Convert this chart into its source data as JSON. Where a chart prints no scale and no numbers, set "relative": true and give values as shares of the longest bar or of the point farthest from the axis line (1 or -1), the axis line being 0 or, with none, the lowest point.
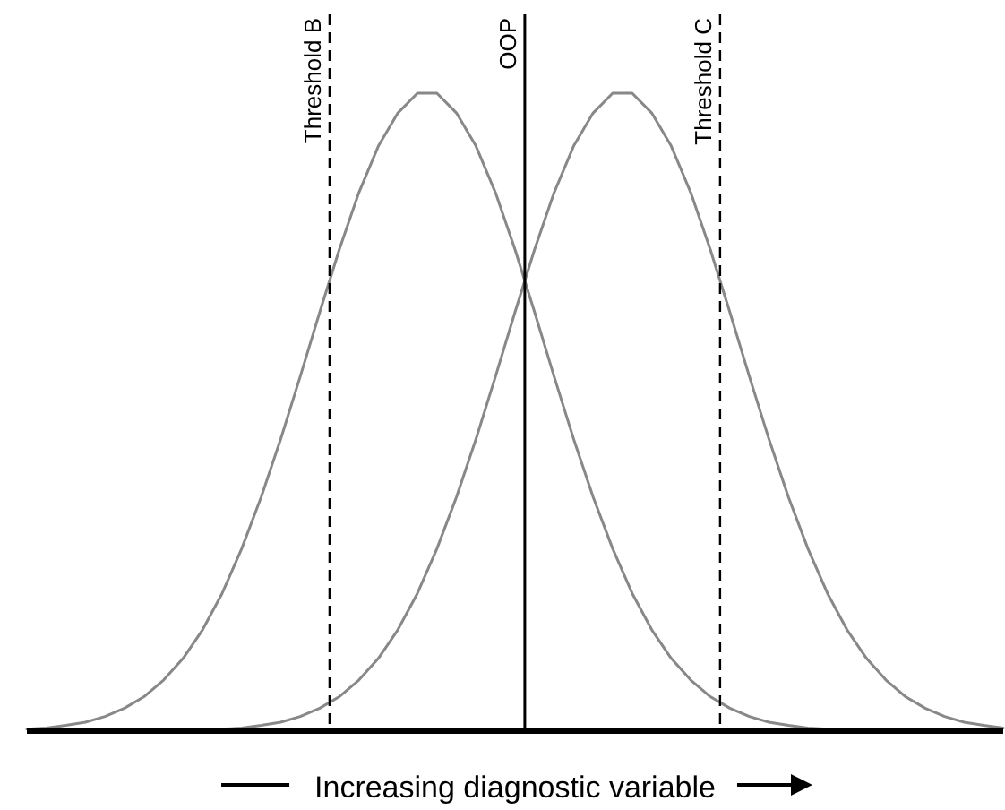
{
  "chart_data": {
    "type": "line",
    "relative": true,
    "xlabel": "Increasing diagnostic variable",
    "line_style": "solid",
    "categories": [
      null,
      null,
      null,
      null,
      null,
      null,
      null,
      null,
      null,
      null,
      null,
      null,
      null,
      null,
      null,
      null,
      null,
      null,
      null,
      null,
      null,
      null,
      null,
      null,
      null,
      null,
      null,
      null,
      null,
      null,
      null,
      null,
      null,
      null,
      null,
      null,
      null,
      null,
      null,
      null,
      null,
      null,
      null,
      null,
      null,
      null,
      null,
      null,
      null,
      null,
      null
    ],
    "series": [
      {
        "color": "#888888",
        "values": [
          0.003,
          0.005,
          0.009,
          0.014,
          0.023,
          0.036,
          0.054,
          0.08,
          0.114,
          0.159,
          0.216,
          0.286,
          0.367,
          0.458,
          0.556,
          0.657,
          0.755,
          0.844,
          0.917,
          0.969,
          1,
          1,
          0.969,
          0.917,
          0.844,
          0.755,
          0.657,
          0.556,
          0.458,
          0.367,
          0.286,
          0.216,
          0.159,
          0.114,
          0.08,
          0.054,
          0.036,
          0.023,
          0.014,
          0.009,
          0.005,
          0.003,
          null,
          null,
          null,
          null,
          null,
          null,
          null,
          null,
          null
        ]
      },
      {
        "color": "#888888",
        "values": [
          null,
          null,
          null,
          null,
          null,
          null,
          null,
          null,
          null,
          null,
          0.003,
          0.005,
          0.009,
          0.014,
          0.023,
          0.036,
          0.054,
          0.08,
          0.114,
          0.159,
          0.216,
          0.286,
          0.367,
          0.458,
          0.556,
          0.657,
          0.755,
          0.844,
          0.917,
          0.969,
          1,
          1,
          0.969,
          0.917,
          0.844,
          0.755,
          0.657,
          0.556,
          0.458,
          0.367,
          0.286,
          0.216,
          0.159,
          0.114,
          0.08,
          0.054,
          0.036,
          0.023,
          0.014,
          0.009,
          0.005
        ]
      }
    ],
    "annotations": [
      "Threshold B",
      "OOP",
      "Threshold C"
    ]
  }
}
